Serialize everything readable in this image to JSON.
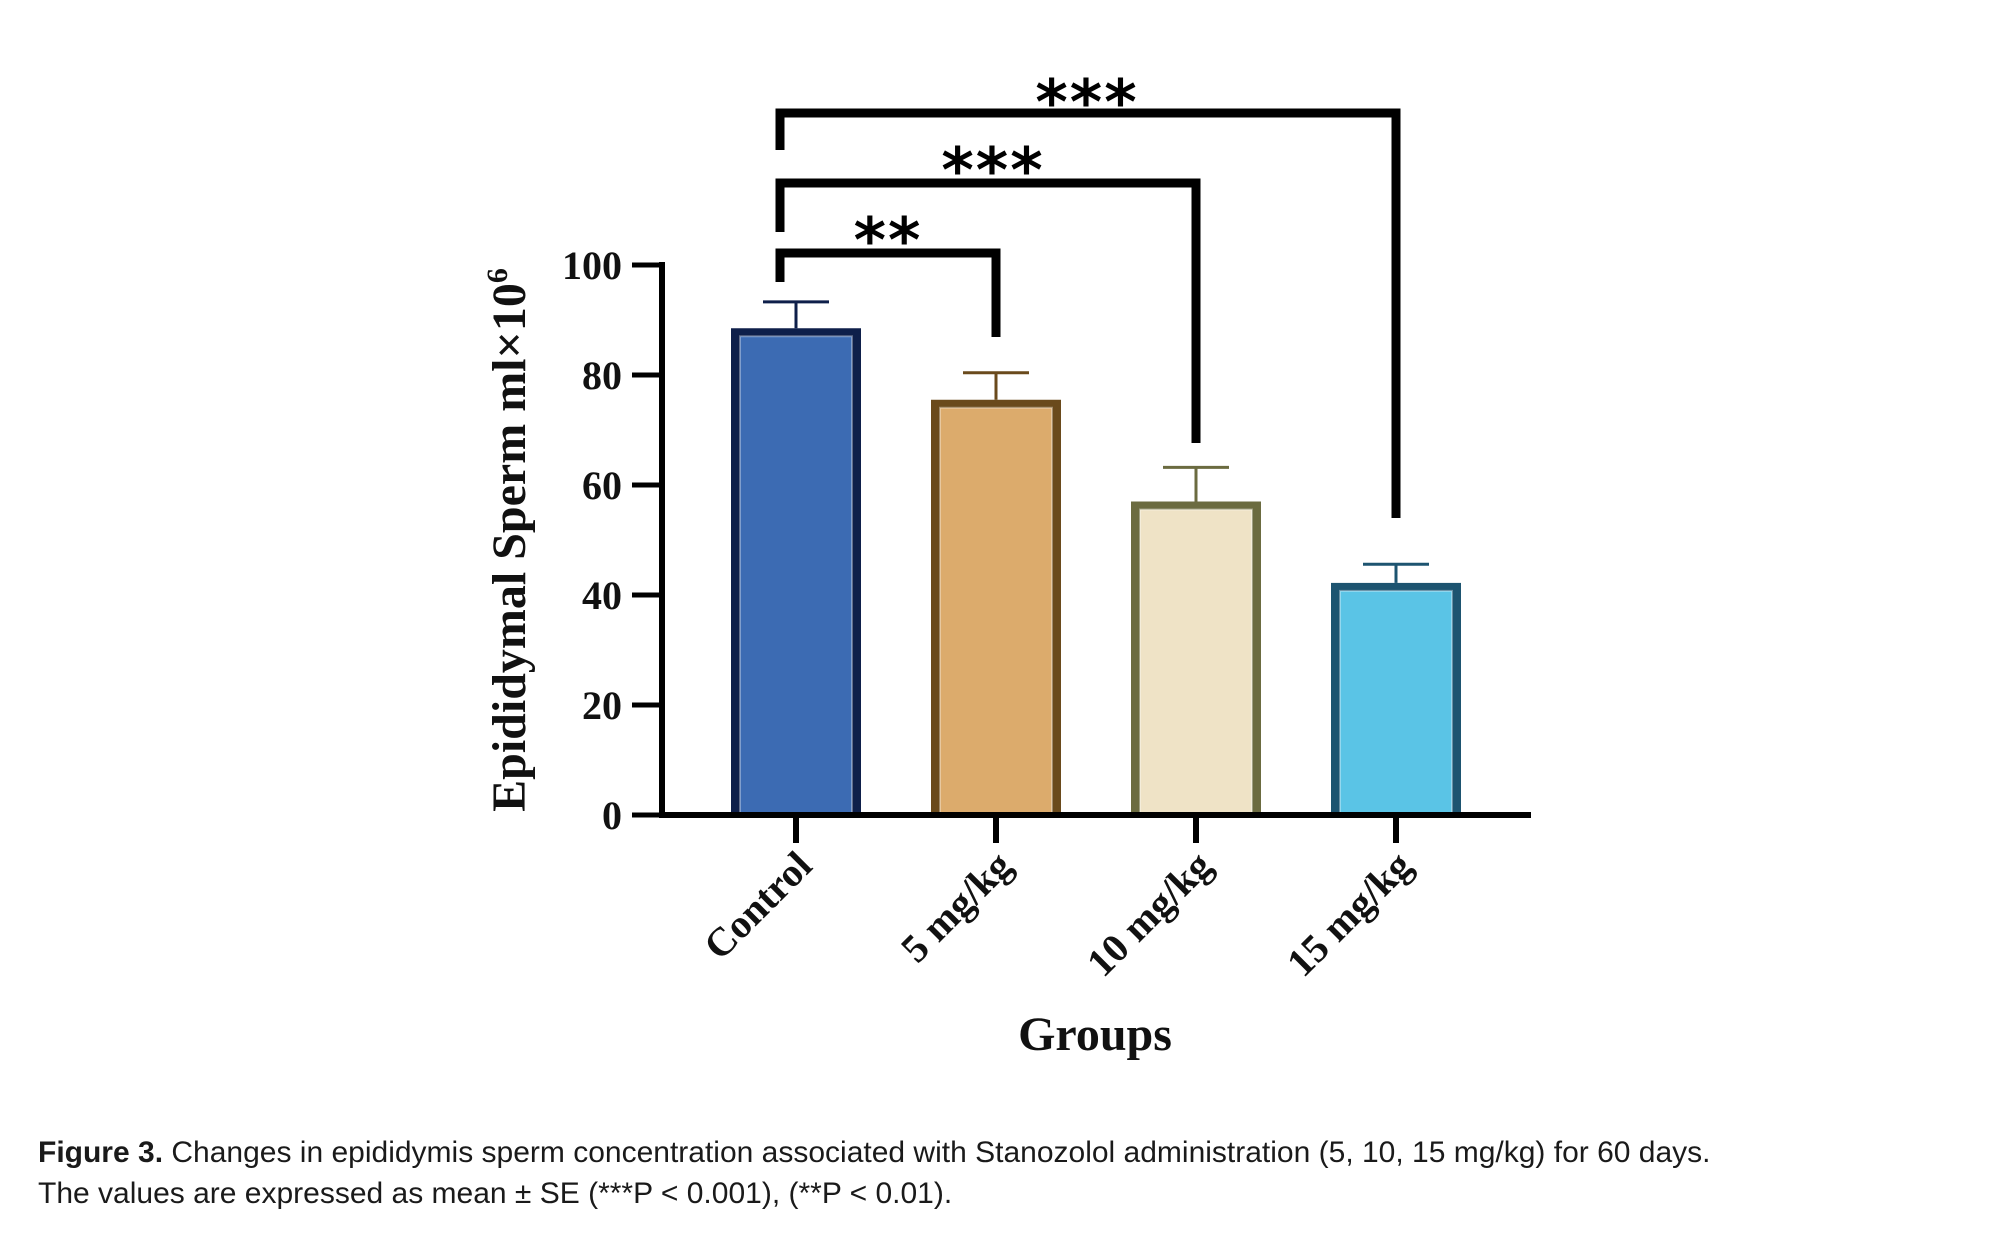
{
  "chart_data": {
    "type": "bar",
    "title": "",
    "xlabel": "Groups",
    "ylabel": "Epididymal Sperm ml×10",
    "ylabel_superscript": "6",
    "ylim": [
      0,
      100
    ],
    "yticks": [
      "0",
      "20",
      "40",
      "60",
      "80",
      "100"
    ],
    "grid": false,
    "categories": [
      "Control",
      "5 mg/kg",
      "10 mg/kg",
      "15 mg/kg"
    ],
    "values": [
      88.5,
      75.5,
      57,
      42.2
    ],
    "errors": [
      4.8,
      4.9,
      6.2,
      3.4
    ],
    "error_type": "SE",
    "colors": [
      {
        "fill": "#3c6bb3",
        "border": "#0e1f4a"
      },
      {
        "fill": "#dcab6c",
        "border": "#6a4a1c"
      },
      {
        "fill": "#efe3c6",
        "border": "#6b6b40"
      },
      {
        "fill": "#5ac4e6",
        "border": "#1d5470"
      }
    ],
    "significance": [
      {
        "from": "Control",
        "to": "5 mg/kg",
        "label": "**"
      },
      {
        "from": "Control",
        "to": "10 mg/kg",
        "label": "***"
      },
      {
        "from": "Control",
        "to": "15 mg/kg",
        "label": "***"
      }
    ]
  },
  "caption": {
    "label": "Figure 3.",
    "line1": "Changes in epididymis sperm concentration associated with Stanozolol administration (5, 10, 15 mg/kg) for 60 days.",
    "line2": "The values are expressed as mean ± SE (***P < 0.001), (**P < 0.01)."
  }
}
